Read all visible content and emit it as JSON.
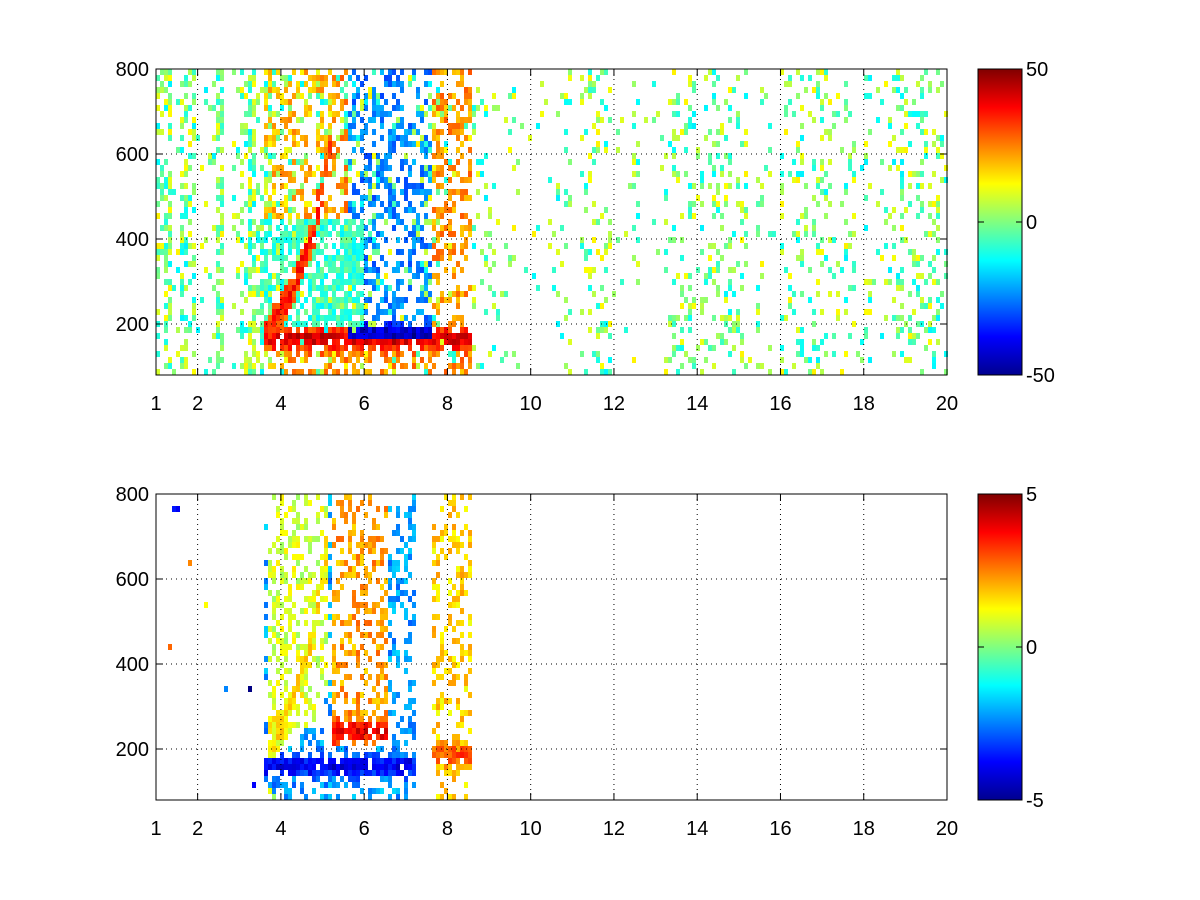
{
  "chart_data": [
    {
      "type": "heatmap",
      "title": "",
      "xlabel": "",
      "ylabel": "",
      "xlim": [
        1,
        20
      ],
      "ylim": [
        80,
        800
      ],
      "x_ticks": [
        1,
        2,
        4,
        6,
        8,
        10,
        12,
        14,
        16,
        18,
        20
      ],
      "y_ticks": [
        200,
        400,
        600,
        800
      ],
      "grid": true,
      "colormap": "jet",
      "colorbar": {
        "range": [
          -50,
          50
        ],
        "ticks": [
          -50,
          0,
          50
        ]
      },
      "features": [
        {
          "kind": "rising-ridge",
          "x": [
            3.6,
            4.2,
            4.8,
            5.2
          ],
          "y": [
            160,
            260,
            420,
            620
          ],
          "value": 35
        },
        {
          "kind": "horizontal-band",
          "x_start": 3.6,
          "x_end": 8.6,
          "y": 165,
          "value": 42
        },
        {
          "kind": "horizontal-band",
          "x_start": 5.6,
          "x_end": 7.6,
          "y": 175,
          "value": -45
        },
        {
          "kind": "diffuse-region",
          "x_start": 3.5,
          "x_end": 6.0,
          "y_start": 150,
          "y_end": 450,
          "value": -10
        }
      ]
    },
    {
      "type": "heatmap",
      "title": "",
      "xlabel": "",
      "ylabel": "",
      "xlim": [
        1,
        20
      ],
      "ylim": [
        80,
        800
      ],
      "x_ticks": [
        1,
        2,
        4,
        6,
        8,
        10,
        12,
        14,
        16,
        18,
        20
      ],
      "y_ticks": [
        200,
        400,
        600,
        800
      ],
      "grid": true,
      "colormap": "jet",
      "colorbar": {
        "range": [
          -5,
          5
        ],
        "ticks": [
          -5,
          0,
          5
        ]
      },
      "features": [
        {
          "kind": "rising-ridge",
          "x": [
            3.7,
            4.3,
            4.8,
            5.1
          ],
          "y": [
            200,
            320,
            480,
            660
          ],
          "value": 1.5
        },
        {
          "kind": "horizontal-band",
          "x_start": 3.6,
          "x_end": 7.2,
          "y": 160,
          "value": -4
        },
        {
          "kind": "horizontal-band",
          "x_start": 5.2,
          "x_end": 6.6,
          "y": 240,
          "value": 4
        },
        {
          "kind": "horizontal-band",
          "x_start": 7.6,
          "x_end": 8.6,
          "y": 185,
          "value": 3
        }
      ]
    }
  ]
}
